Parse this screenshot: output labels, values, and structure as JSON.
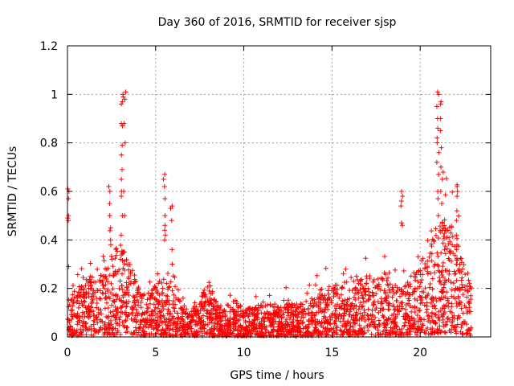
{
  "chart_data": {
    "type": "scatter",
    "title": "Day 360 of 2016, SRMTID for receiver sjsp",
    "xlabel": "GPS time / hours",
    "ylabel": "SRMTID / TECUs",
    "xlim": [
      0,
      24
    ],
    "ylim": [
      0,
      1.2
    ],
    "xticks": [
      0,
      5,
      10,
      15,
      20
    ],
    "xtick_labels": [
      "0",
      "5",
      "10",
      "15",
      "20"
    ],
    "yticks": [
      0,
      0.2,
      0.4,
      0.6,
      0.8,
      1.0,
      1.2
    ],
    "ytick_labels": [
      "0",
      "0.2",
      "0.4",
      "0.6",
      "0.8",
      "1",
      "1.2"
    ],
    "grid": true,
    "marker": "+",
    "color": "#ff0000",
    "series": [
      {
        "name": "SRMTID",
        "profile": {
          "description": "approximate envelope of the dense point cloud read from the plot",
          "baseline": [
            [
              0.0,
              0.08
            ],
            [
              0.5,
              0.09
            ],
            [
              1.0,
              0.12
            ],
            [
              1.5,
              0.13
            ],
            [
              2.0,
              0.14
            ],
            [
              2.5,
              0.18
            ],
            [
              3.0,
              0.2
            ],
            [
              3.5,
              0.16
            ],
            [
              4.0,
              0.12
            ],
            [
              4.5,
              0.1
            ],
            [
              5.0,
              0.11
            ],
            [
              5.5,
              0.13
            ],
            [
              6.0,
              0.1
            ],
            [
              6.5,
              0.07
            ],
            [
              7.0,
              0.06
            ],
            [
              7.5,
              0.08
            ],
            [
              8.0,
              0.12
            ],
            [
              8.5,
              0.07
            ],
            [
              9.0,
              0.06
            ],
            [
              9.5,
              0.08
            ],
            [
              10.0,
              0.06
            ],
            [
              11.0,
              0.07
            ],
            [
              12.0,
              0.07
            ],
            [
              13.0,
              0.07
            ],
            [
              14.0,
              0.09
            ],
            [
              15.0,
              0.11
            ],
            [
              16.0,
              0.12
            ],
            [
              17.0,
              0.13
            ],
            [
              18.0,
              0.13
            ],
            [
              19.0,
              0.1
            ],
            [
              19.5,
              0.13
            ],
            [
              20.0,
              0.16
            ],
            [
              20.5,
              0.2
            ],
            [
              21.0,
              0.24
            ],
            [
              21.5,
              0.26
            ],
            [
              22.0,
              0.22
            ],
            [
              22.5,
              0.15
            ],
            [
              22.9,
              0.12
            ]
          ],
          "spikes": [
            {
              "x": 0.05,
              "values": [
                0.61,
                0.6,
                0.57,
                0.5,
                0.49,
                0.48,
                0.29
              ]
            },
            {
              "x": 2.4,
              "values": [
                0.62,
                0.6,
                0.55,
                0.5,
                0.45,
                0.4,
                0.38
              ]
            },
            {
              "x": 3.1,
              "values": [
                1.0,
                0.99,
                0.97,
                0.96,
                0.88,
                0.87,
                0.79,
                0.75,
                0.69,
                0.65,
                0.6,
                0.58,
                0.5,
                0.42,
                0.35
              ]
            },
            {
              "x": 3.25,
              "values": [
                1.01,
                0.98,
                0.88,
                0.8,
                0.6,
                0.5
              ]
            },
            {
              "x": 5.5,
              "values": [
                0.67,
                0.65,
                0.62,
                0.57,
                0.5,
                0.46,
                0.44,
                0.42,
                0.4
              ]
            },
            {
              "x": 5.9,
              "values": [
                0.54,
                0.53,
                0.48,
                0.36,
                0.3
              ]
            },
            {
              "x": 18.95,
              "values": [
                0.6,
                0.58,
                0.56,
                0.54,
                0.47,
                0.46
              ]
            },
            {
              "x": 21.0,
              "values": [
                1.01,
                1.0,
                0.95,
                0.9,
                0.86,
                0.82,
                0.8,
                0.76,
                0.72,
                0.67,
                0.6,
                0.57,
                0.5
              ]
            },
            {
              "x": 21.2,
              "values": [
                0.97,
                0.96,
                0.9,
                0.85,
                0.78,
                0.7,
                0.65,
                0.6,
                0.55
              ]
            },
            {
              "x": 22.1,
              "values": [
                0.62,
                0.6,
                0.58,
                0.52,
                0.48,
                0.42,
                0.36,
                0.3
              ]
            }
          ]
        }
      }
    ]
  }
}
